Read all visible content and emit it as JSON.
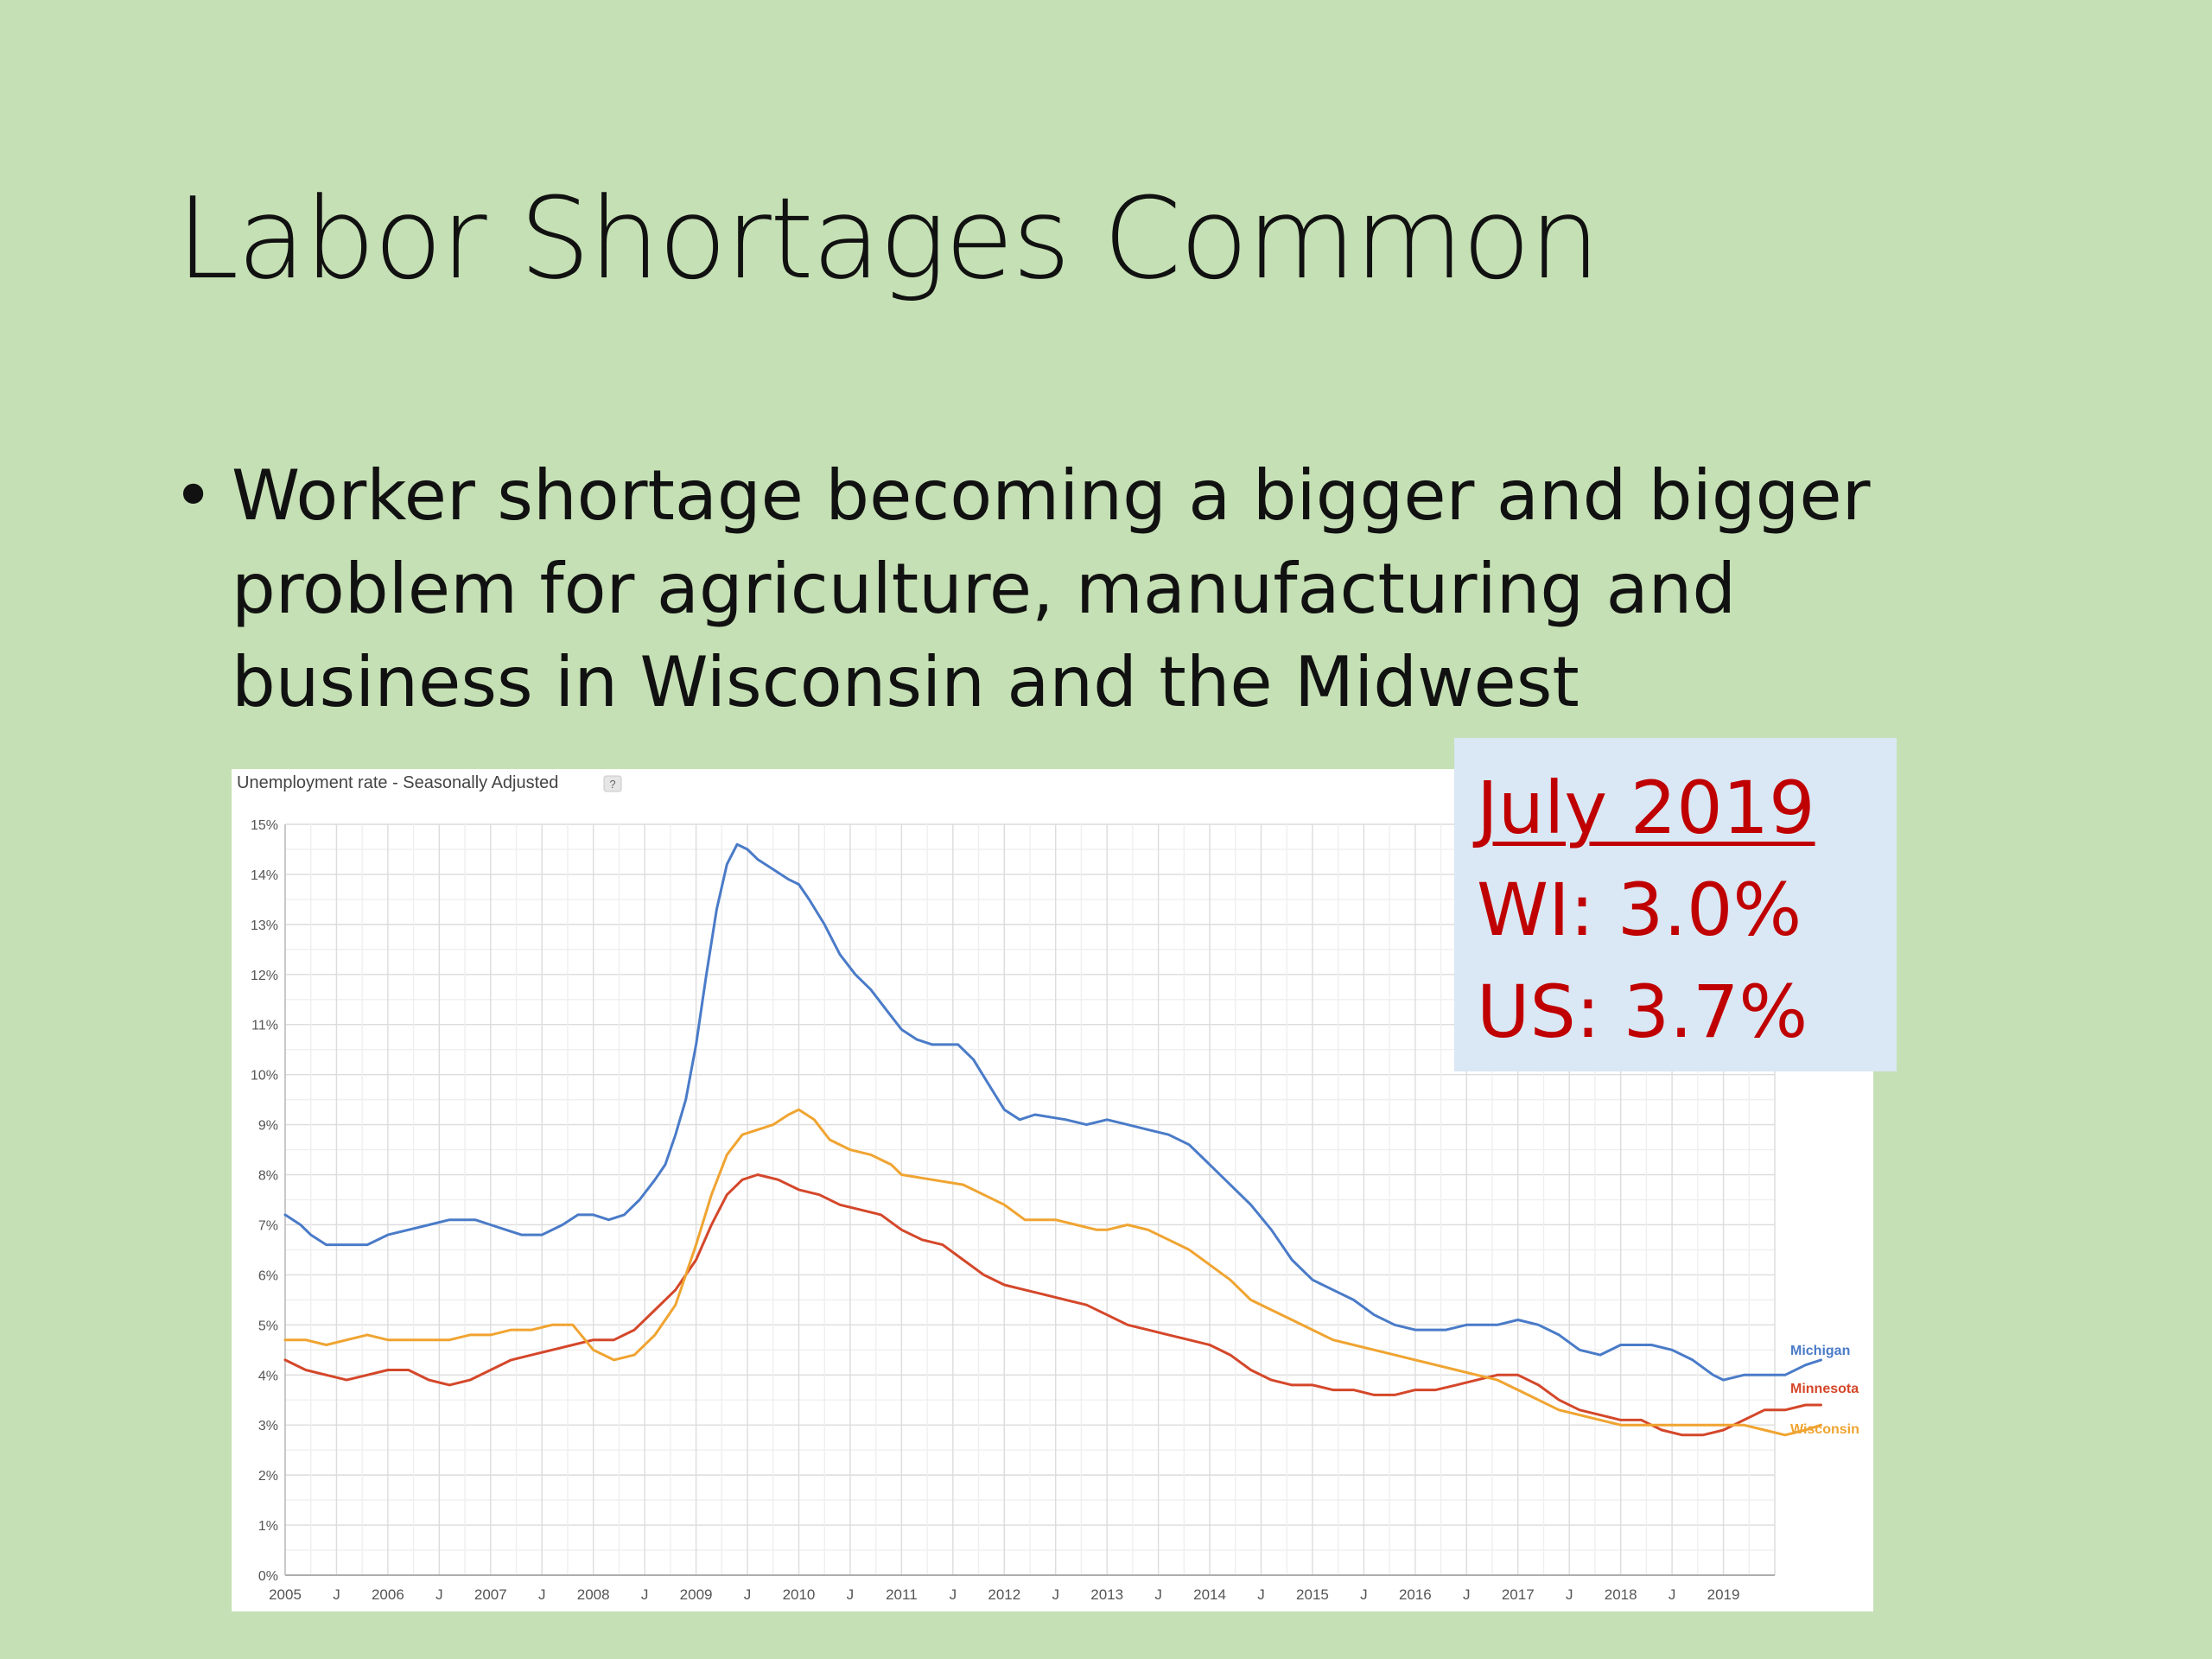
{
  "slide": {
    "title": "Labor Shortages Common",
    "bullet": "Worker shortage becoming a bigger and bigger problem for agriculture, manufacturing and business in Wisconsin and the Midwest"
  },
  "callout": {
    "heading": "July 2019",
    "line1": "WI: 3.0%",
    "line2": "US: 3.7%"
  },
  "colors": {
    "background": "#c5e0b4",
    "callout_bg": "#dae7f4",
    "callout_text": "#c00000",
    "Michigan": "#4a7bc8",
    "Minnesota": "#d4472a",
    "Wisconsin": "#f0a431"
  },
  "chart_data": {
    "type": "line",
    "title": "Unemployment rate - Seasonally Adjusted",
    "help_badge": "?",
    "ylim": [
      0,
      15
    ],
    "xlim": [
      2005.0,
      2019.5
    ],
    "y_ticks": [
      {
        "value": 0,
        "label": "0%"
      },
      {
        "value": 1,
        "label": "1%"
      },
      {
        "value": 2,
        "label": "2%"
      },
      {
        "value": 3,
        "label": "3%"
      },
      {
        "value": 4,
        "label": "4%"
      },
      {
        "value": 5,
        "label": "5%"
      },
      {
        "value": 6,
        "label": "6%"
      },
      {
        "value": 7,
        "label": "7%"
      },
      {
        "value": 8,
        "label": "8%"
      },
      {
        "value": 9,
        "label": "9%"
      },
      {
        "value": 10,
        "label": "10%"
      },
      {
        "value": 11,
        "label": "11%"
      },
      {
        "value": 12,
        "label": "12%"
      },
      {
        "value": 13,
        "label": "13%"
      },
      {
        "value": 14,
        "label": "14%"
      },
      {
        "value": 15,
        "label": "15%"
      }
    ],
    "x_ticks": [
      {
        "value": 2005.0,
        "label": "2005"
      },
      {
        "value": 2005.5,
        "label": "J"
      },
      {
        "value": 2006.0,
        "label": "2006"
      },
      {
        "value": 2006.5,
        "label": "J"
      },
      {
        "value": 2007.0,
        "label": "2007"
      },
      {
        "value": 2007.5,
        "label": "J"
      },
      {
        "value": 2008.0,
        "label": "2008"
      },
      {
        "value": 2008.5,
        "label": "J"
      },
      {
        "value": 2009.0,
        "label": "2009"
      },
      {
        "value": 2009.5,
        "label": "J"
      },
      {
        "value": 2010.0,
        "label": "2010"
      },
      {
        "value": 2010.5,
        "label": "J"
      },
      {
        "value": 2011.0,
        "label": "2011"
      },
      {
        "value": 2011.5,
        "label": "J"
      },
      {
        "value": 2012.0,
        "label": "2012"
      },
      {
        "value": 2012.5,
        "label": "J"
      },
      {
        "value": 2013.0,
        "label": "2013"
      },
      {
        "value": 2013.5,
        "label": "J"
      },
      {
        "value": 2014.0,
        "label": "2014"
      },
      {
        "value": 2014.5,
        "label": "J"
      },
      {
        "value": 2015.0,
        "label": "2015"
      },
      {
        "value": 2015.5,
        "label": "J"
      },
      {
        "value": 2016.0,
        "label": "2016"
      },
      {
        "value": 2016.5,
        "label": "J"
      },
      {
        "value": 2017.0,
        "label": "2017"
      },
      {
        "value": 2017.5,
        "label": "J"
      },
      {
        "value": 2018.0,
        "label": "2018"
      },
      {
        "value": 2018.5,
        "label": "J"
      },
      {
        "value": 2019.0,
        "label": "2019"
      }
    ],
    "grid": true,
    "legend": "labels at right end of lines",
    "series": [
      {
        "name": "Michigan",
        "color": "#4a7bc8",
        "points": [
          [
            2005.0,
            7.2
          ],
          [
            2005.15,
            7.0
          ],
          [
            2005.25,
            6.8
          ],
          [
            2005.4,
            6.6
          ],
          [
            2005.6,
            6.6
          ],
          [
            2005.8,
            6.6
          ],
          [
            2006.0,
            6.8
          ],
          [
            2006.2,
            6.9
          ],
          [
            2006.4,
            7.0
          ],
          [
            2006.6,
            7.1
          ],
          [
            2006.85,
            7.1
          ],
          [
            2007.0,
            7.0
          ],
          [
            2007.15,
            6.9
          ],
          [
            2007.3,
            6.8
          ],
          [
            2007.5,
            6.8
          ],
          [
            2007.7,
            7.0
          ],
          [
            2007.85,
            7.2
          ],
          [
            2008.0,
            7.2
          ],
          [
            2008.15,
            7.1
          ],
          [
            2008.3,
            7.2
          ],
          [
            2008.45,
            7.5
          ],
          [
            2008.6,
            7.9
          ],
          [
            2008.7,
            8.2
          ],
          [
            2008.8,
            8.8
          ],
          [
            2008.9,
            9.5
          ],
          [
            2009.0,
            10.6
          ],
          [
            2009.1,
            12.0
          ],
          [
            2009.2,
            13.3
          ],
          [
            2009.3,
            14.2
          ],
          [
            2009.4,
            14.6
          ],
          [
            2009.5,
            14.5
          ],
          [
            2009.6,
            14.3
          ],
          [
            2009.75,
            14.1
          ],
          [
            2009.9,
            13.9
          ],
          [
            2010.0,
            13.8
          ],
          [
            2010.1,
            13.5
          ],
          [
            2010.25,
            13.0
          ],
          [
            2010.4,
            12.4
          ],
          [
            2010.55,
            12.0
          ],
          [
            2010.7,
            11.7
          ],
          [
            2010.85,
            11.3
          ],
          [
            2011.0,
            10.9
          ],
          [
            2011.15,
            10.7
          ],
          [
            2011.3,
            10.6
          ],
          [
            2011.55,
            10.6
          ],
          [
            2011.7,
            10.3
          ],
          [
            2011.85,
            9.8
          ],
          [
            2012.0,
            9.3
          ],
          [
            2012.15,
            9.1
          ],
          [
            2012.3,
            9.2
          ],
          [
            2012.6,
            9.1
          ],
          [
            2012.8,
            9.0
          ],
          [
            2013.0,
            9.1
          ],
          [
            2013.2,
            9.0
          ],
          [
            2013.4,
            8.9
          ],
          [
            2013.6,
            8.8
          ],
          [
            2013.8,
            8.6
          ],
          [
            2014.0,
            8.2
          ],
          [
            2014.2,
            7.8
          ],
          [
            2014.4,
            7.4
          ],
          [
            2014.6,
            6.9
          ],
          [
            2014.8,
            6.3
          ],
          [
            2015.0,
            5.9
          ],
          [
            2015.2,
            5.7
          ],
          [
            2015.4,
            5.5
          ],
          [
            2015.6,
            5.2
          ],
          [
            2015.8,
            5.0
          ],
          [
            2016.0,
            4.9
          ],
          [
            2016.3,
            4.9
          ],
          [
            2016.5,
            5.0
          ],
          [
            2016.8,
            5.0
          ],
          [
            2017.0,
            5.1
          ],
          [
            2017.2,
            5.0
          ],
          [
            2017.4,
            4.8
          ],
          [
            2017.6,
            4.5
          ],
          [
            2017.8,
            4.4
          ],
          [
            2018.0,
            4.6
          ],
          [
            2018.3,
            4.6
          ],
          [
            2018.5,
            4.5
          ],
          [
            2018.7,
            4.3
          ],
          [
            2018.9,
            4.0
          ],
          [
            2019.0,
            3.9
          ],
          [
            2019.2,
            4.0
          ],
          [
            2019.6,
            4.0
          ],
          [
            2019.8,
            4.2
          ],
          [
            2019.95,
            4.3
          ]
        ]
      },
      {
        "name": "Minnesota",
        "color": "#d4472a",
        "points": [
          [
            2005.0,
            4.3
          ],
          [
            2005.2,
            4.1
          ],
          [
            2005.4,
            4.0
          ],
          [
            2005.6,
            3.9
          ],
          [
            2005.8,
            4.0
          ],
          [
            2006.0,
            4.1
          ],
          [
            2006.2,
            4.1
          ],
          [
            2006.4,
            3.9
          ],
          [
            2006.6,
            3.8
          ],
          [
            2006.8,
            3.9
          ],
          [
            2007.0,
            4.1
          ],
          [
            2007.2,
            4.3
          ],
          [
            2007.4,
            4.4
          ],
          [
            2007.6,
            4.5
          ],
          [
            2007.8,
            4.6
          ],
          [
            2008.0,
            4.7
          ],
          [
            2008.2,
            4.7
          ],
          [
            2008.4,
            4.9
          ],
          [
            2008.6,
            5.3
          ],
          [
            2008.8,
            5.7
          ],
          [
            2009.0,
            6.3
          ],
          [
            2009.15,
            7.0
          ],
          [
            2009.3,
            7.6
          ],
          [
            2009.45,
            7.9
          ],
          [
            2009.6,
            8.0
          ],
          [
            2009.8,
            7.9
          ],
          [
            2010.0,
            7.7
          ],
          [
            2010.2,
            7.6
          ],
          [
            2010.4,
            7.4
          ],
          [
            2010.6,
            7.3
          ],
          [
            2010.8,
            7.2
          ],
          [
            2011.0,
            6.9
          ],
          [
            2011.2,
            6.7
          ],
          [
            2011.4,
            6.6
          ],
          [
            2011.6,
            6.3
          ],
          [
            2011.8,
            6.0
          ],
          [
            2012.0,
            5.8
          ],
          [
            2012.2,
            5.7
          ],
          [
            2012.4,
            5.6
          ],
          [
            2012.6,
            5.5
          ],
          [
            2012.8,
            5.4
          ],
          [
            2013.0,
            5.2
          ],
          [
            2013.2,
            5.0
          ],
          [
            2013.4,
            4.9
          ],
          [
            2013.6,
            4.8
          ],
          [
            2013.8,
            4.7
          ],
          [
            2014.0,
            4.6
          ],
          [
            2014.2,
            4.4
          ],
          [
            2014.4,
            4.1
          ],
          [
            2014.6,
            3.9
          ],
          [
            2014.8,
            3.8
          ],
          [
            2015.0,
            3.8
          ],
          [
            2015.2,
            3.7
          ],
          [
            2015.4,
            3.7
          ],
          [
            2015.6,
            3.6
          ],
          [
            2015.8,
            3.6
          ],
          [
            2016.0,
            3.7
          ],
          [
            2016.2,
            3.7
          ],
          [
            2016.4,
            3.8
          ],
          [
            2016.6,
            3.9
          ],
          [
            2016.8,
            4.0
          ],
          [
            2017.0,
            4.0
          ],
          [
            2017.2,
            3.8
          ],
          [
            2017.4,
            3.5
          ],
          [
            2017.6,
            3.3
          ],
          [
            2017.8,
            3.2
          ],
          [
            2018.0,
            3.1
          ],
          [
            2018.2,
            3.1
          ],
          [
            2018.4,
            2.9
          ],
          [
            2018.6,
            2.8
          ],
          [
            2018.8,
            2.8
          ],
          [
            2019.0,
            2.9
          ],
          [
            2019.2,
            3.1
          ],
          [
            2019.4,
            3.3
          ],
          [
            2019.6,
            3.3
          ],
          [
            2019.8,
            3.4
          ],
          [
            2019.95,
            3.4
          ]
        ]
      },
      {
        "name": "Wisconsin",
        "color": "#f0a431",
        "points": [
          [
            2005.0,
            4.7
          ],
          [
            2005.2,
            4.7
          ],
          [
            2005.4,
            4.6
          ],
          [
            2005.6,
            4.7
          ],
          [
            2005.8,
            4.8
          ],
          [
            2006.0,
            4.7
          ],
          [
            2006.2,
            4.7
          ],
          [
            2006.4,
            4.7
          ],
          [
            2006.6,
            4.7
          ],
          [
            2006.8,
            4.8
          ],
          [
            2007.0,
            4.8
          ],
          [
            2007.2,
            4.9
          ],
          [
            2007.4,
            4.9
          ],
          [
            2007.6,
            5.0
          ],
          [
            2007.8,
            5.0
          ],
          [
            2008.0,
            4.5
          ],
          [
            2008.2,
            4.3
          ],
          [
            2008.4,
            4.4
          ],
          [
            2008.6,
            4.8
          ],
          [
            2008.8,
            5.4
          ],
          [
            2009.0,
            6.6
          ],
          [
            2009.15,
            7.6
          ],
          [
            2009.3,
            8.4
          ],
          [
            2009.45,
            8.8
          ],
          [
            2009.6,
            8.9
          ],
          [
            2009.75,
            9.0
          ],
          [
            2009.9,
            9.2
          ],
          [
            2010.0,
            9.3
          ],
          [
            2010.15,
            9.1
          ],
          [
            2010.3,
            8.7
          ],
          [
            2010.5,
            8.5
          ],
          [
            2010.7,
            8.4
          ],
          [
            2010.9,
            8.2
          ],
          [
            2011.0,
            8.0
          ],
          [
            2011.3,
            7.9
          ],
          [
            2011.6,
            7.8
          ],
          [
            2011.8,
            7.6
          ],
          [
            2012.0,
            7.4
          ],
          [
            2012.2,
            7.1
          ],
          [
            2012.5,
            7.1
          ],
          [
            2012.7,
            7.0
          ],
          [
            2012.9,
            6.9
          ],
          [
            2013.0,
            6.9
          ],
          [
            2013.2,
            7.0
          ],
          [
            2013.4,
            6.9
          ],
          [
            2013.6,
            6.7
          ],
          [
            2013.8,
            6.5
          ],
          [
            2014.0,
            6.2
          ],
          [
            2014.2,
            5.9
          ],
          [
            2014.4,
            5.5
          ],
          [
            2014.6,
            5.3
          ],
          [
            2014.8,
            5.1
          ],
          [
            2015.0,
            4.9
          ],
          [
            2015.2,
            4.7
          ],
          [
            2015.4,
            4.6
          ],
          [
            2015.6,
            4.5
          ],
          [
            2015.8,
            4.4
          ],
          [
            2016.0,
            4.3
          ],
          [
            2016.2,
            4.2
          ],
          [
            2016.4,
            4.1
          ],
          [
            2016.6,
            4.0
          ],
          [
            2016.8,
            3.9
          ],
          [
            2017.0,
            3.7
          ],
          [
            2017.2,
            3.5
          ],
          [
            2017.4,
            3.3
          ],
          [
            2017.6,
            3.2
          ],
          [
            2017.8,
            3.1
          ],
          [
            2018.0,
            3.0
          ],
          [
            2018.2,
            3.0
          ],
          [
            2018.4,
            3.0
          ],
          [
            2018.6,
            3.0
          ],
          [
            2018.8,
            3.0
          ],
          [
            2019.0,
            3.0
          ],
          [
            2019.2,
            3.0
          ],
          [
            2019.4,
            2.9
          ],
          [
            2019.6,
            2.8
          ],
          [
            2019.8,
            2.9
          ],
          [
            2019.95,
            3.0
          ]
        ]
      }
    ]
  }
}
